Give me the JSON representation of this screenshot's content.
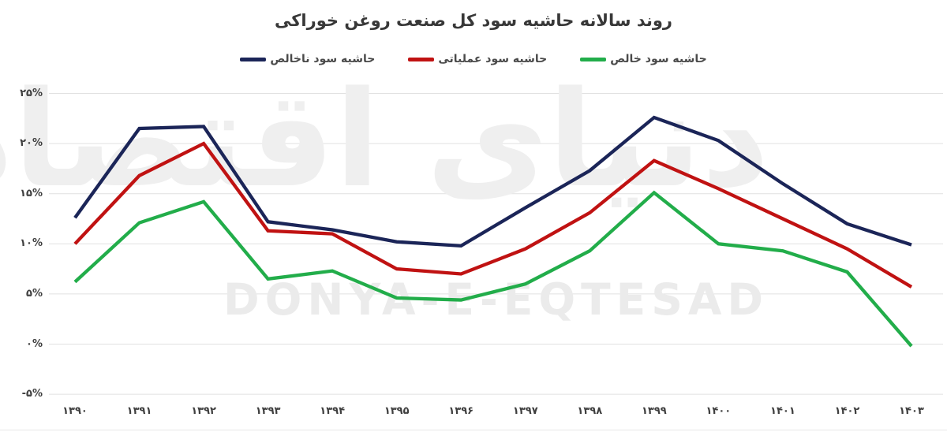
{
  "title": "روند سالانه حاشیه سود کل صنعت روغن خوراکی",
  "legend": [
    {
      "label": "حاشیه سود ناخالص",
      "color": "#1b2558"
    },
    {
      "label": "حاشیه سود عملیاتی",
      "color": "#c01212"
    },
    {
      "label": "حاشیه سود خالص",
      "color": "#22ad4a"
    }
  ],
  "watermark": {
    "persian": "دنیای اقتصاد",
    "latin": "DONYA-E-EQTESAD"
  },
  "colors": {
    "gridline": "#e1e1e1",
    "axis_label": "#3f3f3f",
    "title": "#383838",
    "watermark": "#ebebeb"
  },
  "chart_data": {
    "type": "line",
    "title": "روند سالانه حاشیه سود کل صنعت روغن خوراکی",
    "categories": [
      "۱۳۹۰",
      "۱۳۹۱",
      "۱۳۹۲",
      "۱۳۹۳",
      "۱۳۹۴",
      "۱۳۹۵",
      "۱۳۹۶",
      "۱۳۹۷",
      "۱۳۹۸",
      "۱۳۹۹",
      "۱۴۰۰",
      "۱۴۰۱",
      "۱۴۰۲",
      "۱۴۰۳"
    ],
    "series": [
      {
        "name": "حاشیه سود ناخالص",
        "color": "#1b2558",
        "values": [
          12.6,
          21.5,
          21.7,
          12.2,
          11.4,
          10.2,
          9.8,
          13.6,
          17.3,
          22.6,
          20.3,
          16.0,
          12.0,
          9.9
        ]
      },
      {
        "name": "حاشیه سود عملیاتی",
        "color": "#c01212",
        "values": [
          10.0,
          16.8,
          20.0,
          11.3,
          11.0,
          7.5,
          7.0,
          9.5,
          13.1,
          18.3,
          15.5,
          12.5,
          9.5,
          5.7
        ]
      },
      {
        "name": "حاشیه سود خالص",
        "color": "#22ad4a",
        "values": [
          6.2,
          12.1,
          14.2,
          6.5,
          7.3,
          4.6,
          4.4,
          6.0,
          9.3,
          15.1,
          10.0,
          9.3,
          7.2,
          -0.2
        ]
      }
    ],
    "y_ticks": [
      {
        "value": 25,
        "label": "۲۵%"
      },
      {
        "value": 20,
        "label": "۲۰%"
      },
      {
        "value": 15,
        "label": "۱۵%"
      },
      {
        "value": 10,
        "label": "۱۰%"
      },
      {
        "value": 5,
        "label": "۵%"
      },
      {
        "value": 0,
        "label": "۰%"
      },
      {
        "value": -5,
        "label": "-۵%"
      }
    ],
    "ylim": [
      -5,
      25
    ],
    "grid": true,
    "legend_position": "top"
  }
}
